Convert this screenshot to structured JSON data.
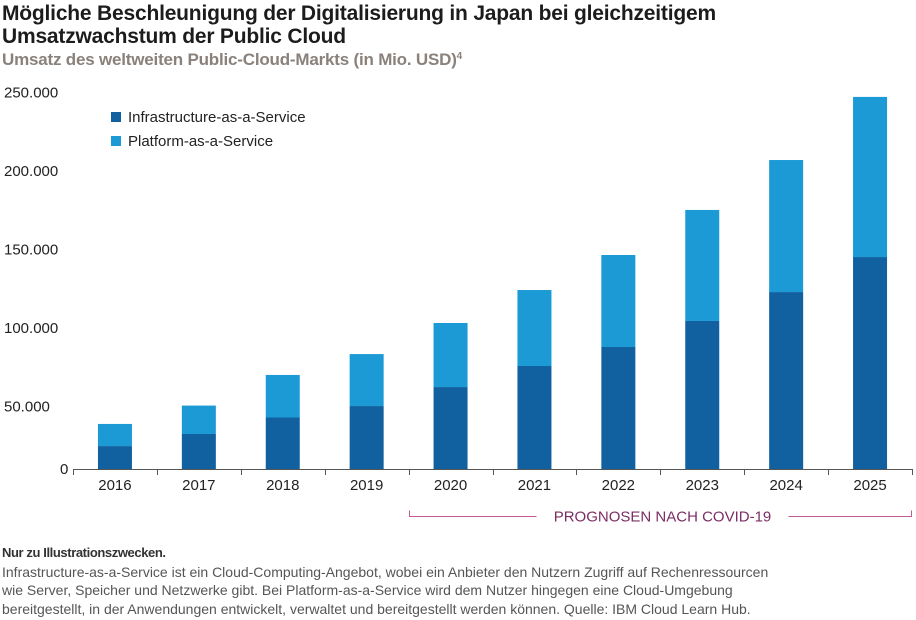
{
  "header": {
    "title_line1": "Mögliche Beschleunigung der Digitalisierung in Japan bei gleichzeitigem",
    "title_line2": "Umsatzwachstum der Public Cloud",
    "subtitle": "Umsatz des weltweiten Public-Cloud-Markts (in Mio. USD)",
    "subtitle_footnote": "4"
  },
  "chart_data": {
    "type": "bar",
    "stacked": true,
    "title": "Umsatz des weltweiten Public-Cloud-Markts (in Mio. USD)",
    "xlabel": "",
    "ylabel": "",
    "categories": [
      "2016",
      "2017",
      "2018",
      "2019",
      "2020",
      "2021",
      "2022",
      "2023",
      "2024",
      "2025"
    ],
    "series": [
      {
        "name": "Infrastructure-as-a-Service",
        "color": "#11609f",
        "values": [
          14600,
          22300,
          32800,
          40100,
          52200,
          65600,
          77700,
          94300,
          112700,
          135000
        ]
      },
      {
        "name": "Platform-as-a-Service",
        "color": "#1b9ad6",
        "values": [
          14100,
          18100,
          27100,
          33100,
          40800,
          48400,
          58600,
          70700,
          84100,
          102000
        ]
      }
    ],
    "ylim": [
      0,
      250000
    ],
    "yticks": [
      0,
      50000,
      100000,
      150000,
      200000,
      250000
    ],
    "ytick_labels": [
      "0",
      "50.000",
      "100.000",
      "150.000",
      "200.000",
      "250.000"
    ],
    "grid": false,
    "legend_position": "top-left",
    "annotation": {
      "text": "PROGNOSEN NACH COVID-19",
      "from": "2020",
      "to": "2025",
      "color": "#7b2d64",
      "line_color": "#c25a95"
    }
  },
  "footer": {
    "note": "Nur zu Illustrationszwecken.",
    "line1": "Infrastructure-as-a-Service ist ein Cloud-Computing-Angebot, wobei ein Anbieter den Nutzern Zugriff auf Rechenressourcen",
    "line2": "wie Server, Speicher und Netzwerke gibt. Bei Platform-as-a-Service wird dem Nutzer hingegen eine Cloud-Umgebung",
    "line3": "bereitgestellt, in der Anwendungen entwickelt, verwaltet und bereitgestellt werden können. Quelle: IBM Cloud Learn Hub."
  }
}
